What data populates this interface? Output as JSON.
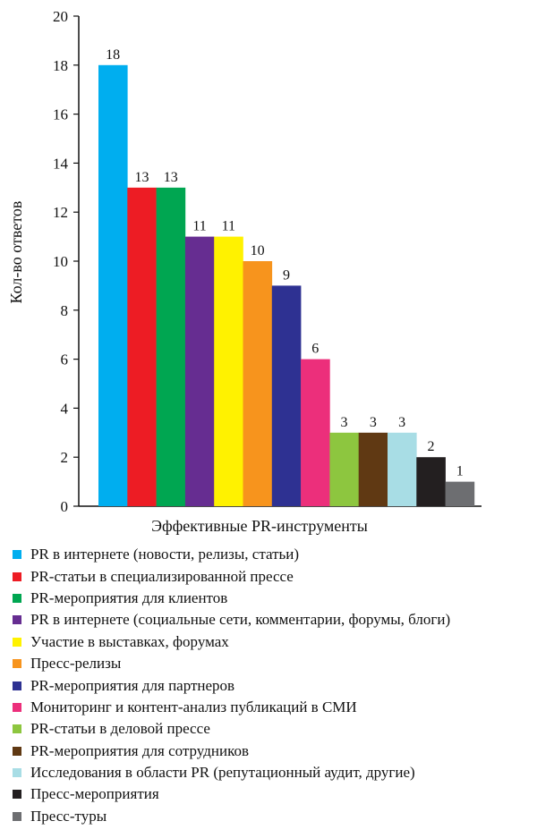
{
  "chart_data": {
    "type": "bar",
    "xlabel": "Эффективные PR-инструменты",
    "ylabel": "Кол-во ответов",
    "ylim": [
      0,
      20
    ],
    "yticks": [
      0,
      2,
      4,
      6,
      8,
      10,
      12,
      14,
      16,
      18,
      20
    ],
    "grid": false,
    "legend_position": "bottom",
    "categories": [
      "PR в интернете (новости, релизы, статьи)",
      "PR-статьи в специализированной прессе",
      "PR-мероприятия для клиентов",
      "PR в интернете (социальные сети, комментарии, форумы, блоги)",
      "Участие в выставках, форумах",
      "Пресс-релизы",
      "PR-мероприятия для партнеров",
      "Мониторинг и контент-анализ публикаций в СМИ",
      "PR-статьи в деловой прессе",
      "PR-мероприятия для сотрудников",
      "Исследования в области PR (репутационный аудит, другие)",
      "Пресс-мероприятия",
      "Пресс-туры"
    ],
    "values": [
      18,
      13,
      13,
      11,
      11,
      10,
      9,
      6,
      3,
      3,
      3,
      2,
      1
    ],
    "colors": [
      "#00aeef",
      "#ed1c24",
      "#00a651",
      "#662d91",
      "#fff200",
      "#f7941d",
      "#2e3192",
      "#ec2f7b",
      "#8dc63f",
      "#603913",
      "#a8dde5",
      "#231f20",
      "#6d6e71"
    ]
  }
}
